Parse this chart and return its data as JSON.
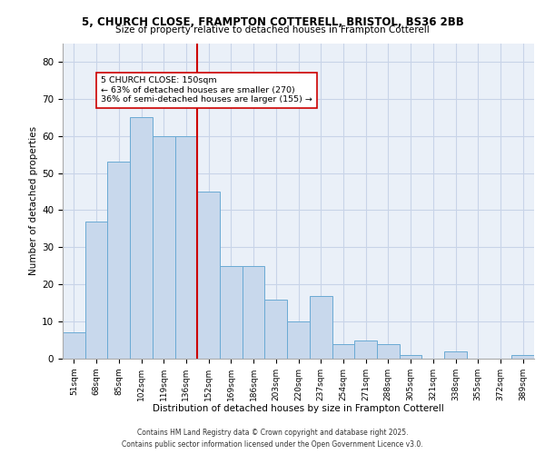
{
  "title_line1": "5, CHURCH CLOSE, FRAMPTON COTTERELL, BRISTOL, BS36 2BB",
  "title_line2": "Size of property relative to detached houses in Frampton Cotterell",
  "xlabel": "Distribution of detached houses by size in Frampton Cotterell",
  "ylabel": "Number of detached properties",
  "categories": [
    "51sqm",
    "68sqm",
    "85sqm",
    "102sqm",
    "119sqm",
    "136sqm",
    "152sqm",
    "169sqm",
    "186sqm",
    "203sqm",
    "220sqm",
    "237sqm",
    "254sqm",
    "271sqm",
    "288sqm",
    "305sqm",
    "321sqm",
    "338sqm",
    "355sqm",
    "372sqm",
    "389sqm"
  ],
  "values": [
    7,
    37,
    53,
    65,
    60,
    60,
    45,
    25,
    25,
    16,
    10,
    17,
    4,
    5,
    4,
    1,
    0,
    2,
    0,
    0,
    1
  ],
  "bar_color": "#c8d8ec",
  "bar_edge_color": "#6aaad4",
  "vline_x_index": 6,
  "vline_color": "#cc0000",
  "annotation_text": "5 CHURCH CLOSE: 150sqm\n← 63% of detached houses are smaller (270)\n36% of semi-detached houses are larger (155) →",
  "annotation_box_color": "#ffffff",
  "annotation_box_edge": "#cc0000",
  "ylim": [
    0,
    85
  ],
  "yticks": [
    0,
    10,
    20,
    30,
    40,
    50,
    60,
    70,
    80
  ],
  "grid_color": "#c8d4e8",
  "background_color": "#eaf0f8",
  "footer_line1": "Contains HM Land Registry data © Crown copyright and database right 2025.",
  "footer_line2": "Contains public sector information licensed under the Open Government Licence v3.0."
}
